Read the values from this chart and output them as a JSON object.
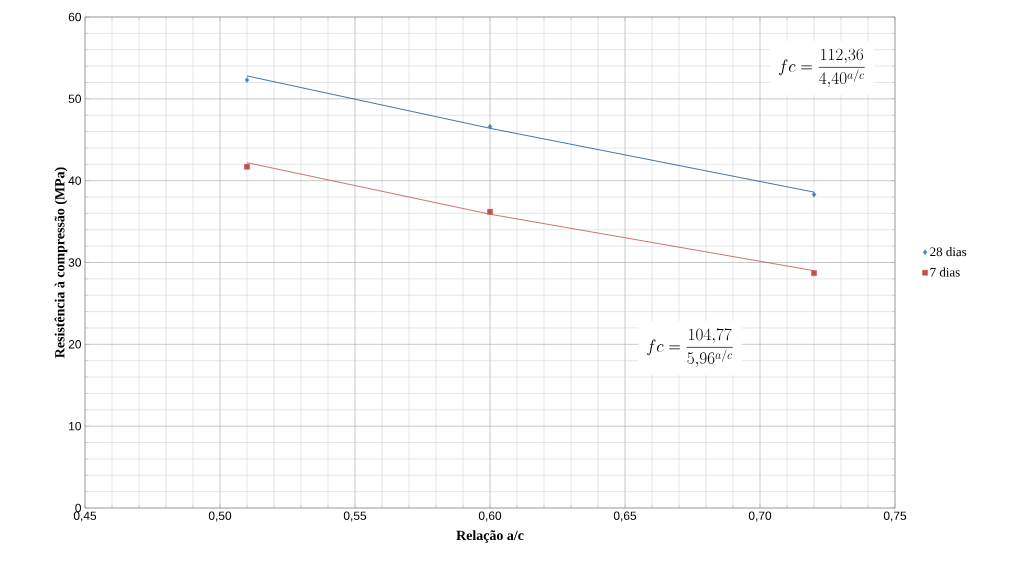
{
  "chart_data": {
    "type": "scatter",
    "xlabel": "Relação a/c",
    "ylabel": "Resistência à compressão (MPa)",
    "xlim": [
      0.45,
      0.75
    ],
    "ylim": [
      0,
      60
    ],
    "xticks": [
      {
        "value": 0.45,
        "label": "0,45"
      },
      {
        "value": 0.5,
        "label": "0,50"
      },
      {
        "value": 0.55,
        "label": "0,55"
      },
      {
        "value": 0.6,
        "label": "0,60"
      },
      {
        "value": 0.65,
        "label": "0,65"
      },
      {
        "value": 0.7,
        "label": "0,70"
      },
      {
        "value": 0.75,
        "label": "0,75"
      }
    ],
    "yticks": [
      0,
      10,
      20,
      30,
      40,
      50,
      60
    ],
    "grid": true,
    "legend": "right",
    "series": [
      {
        "name": "28 dias",
        "color": "#4f81bd",
        "marker": "diamond",
        "x": [
          0.51,
          0.6,
          0.72
        ],
        "values": [
          52.3,
          46.6,
          38.3
        ]
      },
      {
        "name": "7 dias",
        "color": "#c0504d",
        "marker": "square",
        "x": [
          0.51,
          0.6,
          0.72
        ],
        "values": [
          41.7,
          36.2,
          28.7
        ]
      },
      {
        "type": "line",
        "color": "#1f4e8c",
        "x": [
          0.51,
          0.6,
          0.72
        ],
        "values": [
          52.8,
          46.4,
          38.6
        ]
      },
      {
        "type": "line",
        "color": "#c0504d",
        "x": [
          0.51,
          0.6,
          0.72
        ],
        "values": [
          42.2,
          35.9,
          29.0
        ]
      }
    ],
    "annotations": [
      "fc=\\frac{112{,}36}{4{,}40^{a/c}}",
      "fc=\\frac{104{,}77}{5{,}96^{a/c}}"
    ]
  }
}
